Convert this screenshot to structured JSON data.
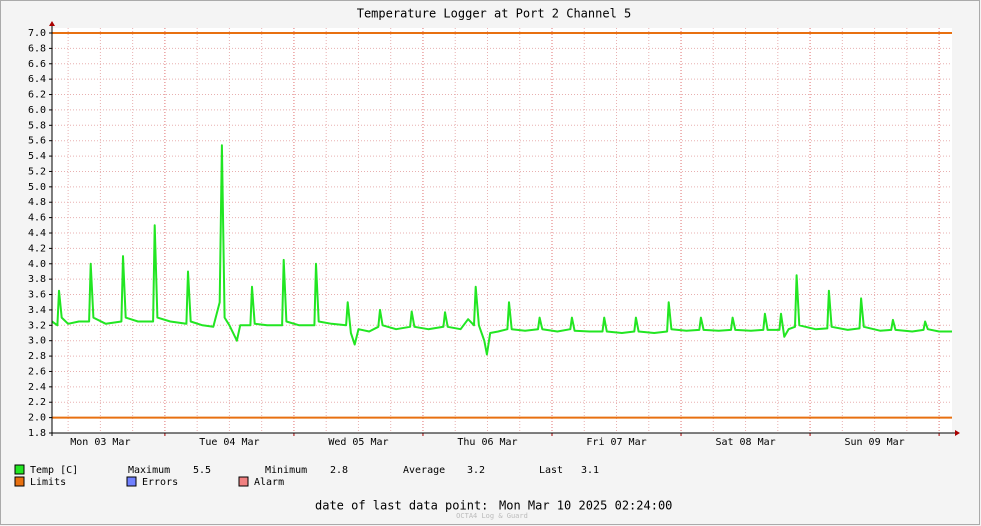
{
  "chart_data": {
    "type": "line",
    "title": "Temperature Logger at Port 2 Channel 5",
    "xlim": [
      3,
      170.4
    ],
    "xticks": [
      {
        "value": 12,
        "label": "Mon 03 Mar"
      },
      {
        "value": 36,
        "label": "Tue 04 Mar"
      },
      {
        "value": 60,
        "label": "Wed 05 Mar"
      },
      {
        "value": 84,
        "label": "Thu 06 Mar"
      },
      {
        "value": 108,
        "label": "Fri 07 Mar"
      },
      {
        "value": 132,
        "label": "Sat 08 Mar"
      },
      {
        "value": 156,
        "label": "Sun 09 Mar"
      }
    ],
    "xmajor": [
      24,
      48,
      72,
      96,
      120,
      144,
      168
    ],
    "ylim": [
      1.8,
      7.0
    ],
    "yticks": [
      1.8,
      {
        "value": 2,
        "label": "2.0"
      },
      2.2,
      2.4,
      2.6,
      2.8,
      {
        "value": 3,
        "label": "3.0"
      },
      3.2,
      3.4,
      3.6,
      3.8,
      {
        "value": 4,
        "label": "4.0"
      },
      4.2,
      4.4,
      4.6,
      4.8,
      {
        "value": 5,
        "label": "5.0"
      },
      5.2,
      5.4,
      5.6,
      5.8,
      {
        "value": 6,
        "label": "6.0"
      },
      6.2,
      6.4,
      6.6,
      6.8,
      {
        "value": 7,
        "label": "7.0"
      }
    ],
    "grid": true,
    "series": [
      {
        "name": "Temp [C]",
        "color": "#22e622",
        "x": [
          3.0,
          4.0,
          4.3,
          4.8,
          6,
          8,
          9.9,
          10.2,
          10.7,
          13,
          15.9,
          16.2,
          16.7,
          19,
          21.8,
          22.1,
          22.6,
          25,
          28.0,
          28.3,
          28.8,
          31,
          33,
          34.2,
          34.6,
          35.1,
          36,
          37.4,
          38,
          39.9,
          40.2,
          40.7,
          43,
          45.8,
          46.1,
          46.6,
          49,
          51.8,
          52.1,
          52.6,
          55,
          57.7,
          58.0,
          58.6,
          59.3,
          60,
          62,
          63.7,
          64.0,
          64.5,
          67,
          69.6,
          69.9,
          70.4,
          73,
          75.8,
          76.1,
          76.6,
          79,
          80.4,
          81.5,
          81.8,
          82.4,
          83.4,
          83.9,
          84.5,
          86,
          87.7,
          88.0,
          88.5,
          91,
          93.4,
          93.7,
          94.2,
          97,
          99.4,
          99.7,
          100.2,
          103,
          105.4,
          105.7,
          106.2,
          109,
          111.3,
          111.6,
          112.1,
          115,
          117.4,
          117.7,
          118.2,
          121,
          123.4,
          123.7,
          124.2,
          127,
          129.3,
          129.6,
          130.1,
          133,
          135.3,
          135.6,
          136.1,
          138.3,
          138.6,
          139.2,
          140,
          141.2,
          141.5,
          142,
          145,
          147.2,
          147.5,
          148,
          151,
          153.2,
          153.5,
          154,
          157,
          159.1,
          159.4,
          159.9,
          163,
          165.1,
          165.4,
          165.9,
          168,
          170.4
        ],
        "values": [
          3.25,
          3.2,
          3.65,
          3.3,
          3.22,
          3.25,
          3.25,
          4.0,
          3.3,
          3.22,
          3.25,
          4.1,
          3.3,
          3.25,
          3.25,
          4.5,
          3.3,
          3.25,
          3.22,
          3.9,
          3.25,
          3.2,
          3.18,
          3.5,
          5.54,
          3.3,
          3.2,
          3.0,
          3.2,
          3.2,
          3.7,
          3.22,
          3.2,
          3.2,
          4.05,
          3.25,
          3.2,
          3.2,
          4.0,
          3.25,
          3.22,
          3.2,
          3.5,
          3.1,
          2.95,
          3.15,
          3.12,
          3.18,
          3.4,
          3.2,
          3.15,
          3.18,
          3.38,
          3.18,
          3.15,
          3.18,
          3.37,
          3.18,
          3.15,
          3.28,
          3.2,
          3.7,
          3.2,
          3.0,
          2.82,
          3.1,
          3.12,
          3.15,
          3.5,
          3.15,
          3.13,
          3.15,
          3.3,
          3.15,
          3.12,
          3.15,
          3.3,
          3.13,
          3.12,
          3.12,
          3.3,
          3.12,
          3.1,
          3.12,
          3.3,
          3.12,
          3.1,
          3.12,
          3.5,
          3.15,
          3.13,
          3.14,
          3.3,
          3.14,
          3.13,
          3.14,
          3.3,
          3.14,
          3.13,
          3.14,
          3.35,
          3.14,
          3.14,
          3.35,
          3.05,
          3.15,
          3.18,
          3.85,
          3.2,
          3.15,
          3.16,
          3.65,
          3.18,
          3.14,
          3.16,
          3.55,
          3.18,
          3.13,
          3.14,
          3.27,
          3.14,
          3.12,
          3.14,
          3.25,
          3.15,
          3.12,
          3.12
        ]
      }
    ],
    "limits": {
      "name": "Limits",
      "color": "#e87010",
      "values": [
        2.0,
        7.0
      ]
    },
    "other_legend": [
      {
        "name": "Errors",
        "color": "#7080ff"
      },
      {
        "name": "Alarm",
        "color": "#f08080"
      }
    ],
    "stats": [
      {
        "label": "Maximum",
        "value": 5.5
      },
      {
        "label": "Minimum",
        "value": 2.8
      },
      {
        "label": "Average",
        "value": 3.2
      },
      {
        "label": "Last",
        "value": 3.1
      }
    ],
    "footer_label": "date of last data point:",
    "last_date": "Mon Mar 10 2025 02:24:00",
    "watermark": "OCTA4 Log & Guard"
  }
}
